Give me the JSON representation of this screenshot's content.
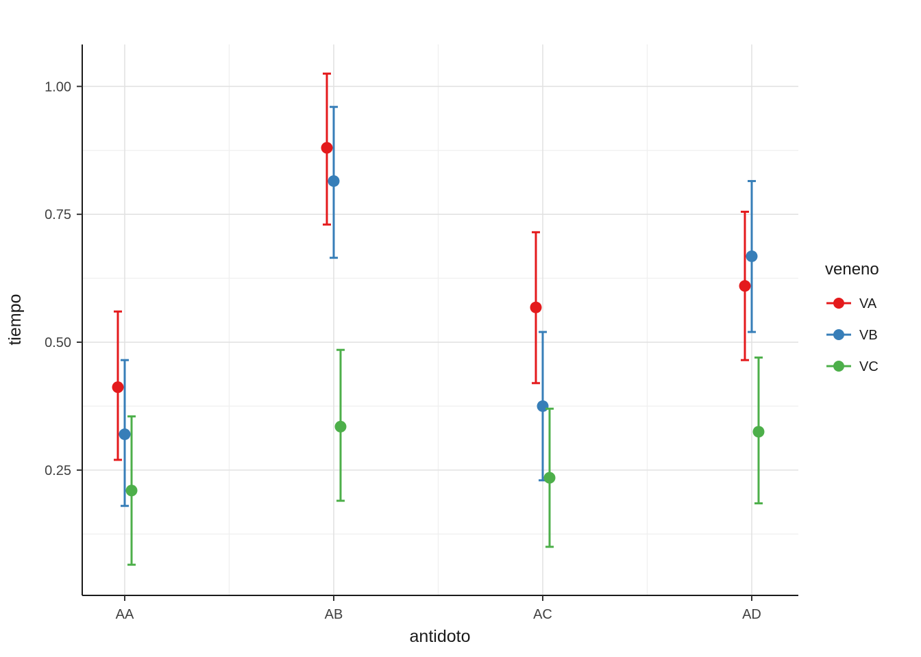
{
  "chart_data": {
    "type": "scatter",
    "subtype": "pointrange-dodged",
    "title": "",
    "xlabel": "antidoto",
    "ylabel": "tiempo",
    "categories": [
      "AA",
      "AB",
      "AC",
      "AD"
    ],
    "y_ticks": [
      "0.25",
      "0.50",
      "0.75",
      "1.00"
    ],
    "y_tick_values": [
      0.25,
      0.5,
      0.75,
      1.0
    ],
    "y_minor_values": [
      0.125,
      0.375,
      0.625,
      0.875
    ],
    "ylim": [
      0.005,
      1.082
    ],
    "grid": true,
    "legend": {
      "title": "veneno",
      "position": "right"
    },
    "series": [
      {
        "name": "VA",
        "color": "#E41A1C",
        "means": [
          0.412,
          0.88,
          0.568,
          0.61
        ],
        "ci_low": [
          0.27,
          0.73,
          0.42,
          0.465
        ],
        "ci_high": [
          0.56,
          1.025,
          0.715,
          0.755
        ]
      },
      {
        "name": "VB",
        "color": "#377EB8",
        "means": [
          0.32,
          0.815,
          0.375,
          0.668
        ],
        "ci_low": [
          0.18,
          0.665,
          0.23,
          0.52
        ],
        "ci_high": [
          0.465,
          0.96,
          0.52,
          0.815
        ]
      },
      {
        "name": "VC",
        "color": "#4DAF4A",
        "means": [
          0.21,
          0.335,
          0.235,
          0.325
        ],
        "ci_low": [
          0.065,
          0.19,
          0.1,
          0.185
        ],
        "ci_high": [
          0.355,
          0.485,
          0.37,
          0.47
        ]
      }
    ],
    "style_colors": {
      "axis_line": "#1a1a1a",
      "major_grid": "#e2e2e2",
      "minor_grid": "#f0f0f0",
      "tick_mark": "#333333"
    }
  }
}
